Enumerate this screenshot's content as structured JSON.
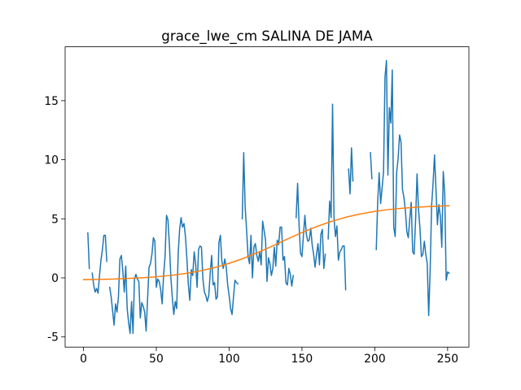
{
  "chart_data": {
    "type": "line",
    "title": "grace_lwe_cm SALINA DE JAMA",
    "xlim": [
      -12.6,
      264.6
    ],
    "xticks": [
      0,
      50,
      100,
      150,
      200,
      250
    ],
    "ylim": [
      -5.86,
      19.56
    ],
    "yticks": [
      -5,
      0,
      5,
      10,
      15
    ],
    "series": [
      {
        "color": "#1f77b4",
        "x": [
          0,
          1,
          2,
          3,
          4,
          5,
          6,
          7,
          8,
          9,
          10,
          11,
          12,
          13,
          14,
          15,
          16,
          17,
          18,
          19,
          20,
          21,
          22,
          23,
          24,
          25,
          26,
          27,
          28,
          29,
          30,
          31,
          32,
          33,
          34,
          35,
          36,
          37,
          38,
          39,
          40,
          41,
          42,
          43,
          44,
          45,
          46,
          47,
          48,
          49,
          50,
          51,
          52,
          53,
          54,
          55,
          56,
          57,
          58,
          59,
          60,
          61,
          62,
          63,
          64,
          65,
          66,
          67,
          68,
          69,
          70,
          71,
          72,
          73,
          74,
          75,
          76,
          77,
          78,
          79,
          80,
          81,
          82,
          83,
          84,
          85,
          86,
          87,
          88,
          89,
          90,
          91,
          92,
          93,
          94,
          95,
          96,
          97,
          98,
          99,
          100,
          101,
          102,
          103,
          104,
          105,
          106,
          107,
          108,
          109,
          110,
          111,
          112,
          113,
          114,
          115,
          116,
          117,
          118,
          119,
          120,
          121,
          122,
          123,
          124,
          125,
          126,
          127,
          128,
          129,
          130,
          131,
          132,
          133,
          134,
          135,
          136,
          137,
          138,
          139,
          140,
          141,
          142,
          143,
          144,
          145,
          146,
          147,
          148,
          149,
          150,
          151,
          152,
          153,
          154,
          155,
          156,
          157,
          158,
          159,
          160,
          161,
          162,
          163,
          164,
          165,
          166,
          167,
          168,
          169,
          170,
          171,
          172,
          173,
          174,
          175,
          176,
          177,
          178,
          179,
          180,
          181,
          182,
          183,
          184,
          185,
          186,
          187,
          188,
          189,
          190,
          191,
          192,
          193,
          194,
          195,
          196,
          197,
          198,
          199,
          200,
          201,
          202,
          203,
          204,
          205,
          206,
          207,
          208,
          209,
          210,
          211,
          212,
          213,
          214,
          215,
          216,
          217,
          218,
          219,
          220,
          221,
          222,
          223,
          224,
          225,
          226,
          227,
          228,
          229,
          230,
          231,
          232,
          233,
          234,
          235,
          236,
          237,
          238,
          239,
          240,
          241,
          242,
          243,
          244,
          245,
          246,
          247,
          248,
          249,
          250,
          251
        ],
        "values": [
          null,
          null,
          null,
          3.8,
          0.8,
          null,
          0.4,
          -0.6,
          -1.2,
          -0.9,
          -1.3,
          0.2,
          1.5,
          2.4,
          3.6,
          3.6,
          1.4,
          null,
          -0.8,
          -1.6,
          -2.8,
          -4.0,
          -2.2,
          -2.9,
          -1.6,
          1.6,
          1.9,
          0.6,
          -1.2,
          1.0,
          -2.6,
          -3.8,
          -4.7,
          -2.0,
          -4.7,
          -0.1,
          0.3,
          -0.1,
          -0.3,
          -3.4,
          -2.1,
          -2.4,
          -2.9,
          -4.5,
          -1.8,
          0.9,
          1.2,
          2.0,
          3.4,
          3.1,
          -0.8,
          -0.1,
          -0.3,
          -1.0,
          -2.2,
          0.2,
          1.8,
          5.3,
          4.9,
          2.8,
          0.0,
          -1.7,
          -3.1,
          -2.0,
          -2.6,
          2.0,
          4.1,
          5.1,
          4.3,
          4.6,
          3.5,
          1.6,
          -0.6,
          -1.9,
          0.7,
          0.2,
          2.2,
          1.2,
          -0.8,
          2.4,
          2.7,
          2.6,
          -0.1,
          -1.2,
          -1.5,
          -2.0,
          -1.5,
          0.4,
          1.9,
          -0.6,
          -0.4,
          -1.8,
          -1.6,
          3.0,
          3.6,
          1.4,
          0.8,
          1.6,
          0.9,
          -0.6,
          -1.5,
          -2.6,
          -3.1,
          -1.6,
          -0.2,
          -0.4,
          -0.5,
          null,
          null,
          5.0,
          10.6,
          6.0,
          4.0,
          1.8,
          1.2,
          3.6,
          0.0,
          2.6,
          2.9,
          1.9,
          1.4,
          2.2,
          1.1,
          4.8,
          4.0,
          3.2,
          -0.3,
          1.7,
          1.2,
          0.2,
          0.8,
          2.6,
          1.0,
          3.2,
          2.8,
          4.3,
          4.3,
          1.5,
          1.8,
          -0.4,
          -0.6,
          0.8,
          0.3,
          -0.7,
          0.2,
          null,
          5.1,
          8.0,
          4.5,
          2.1,
          1.8,
          3.6,
          5.3,
          3.7,
          3.1,
          3.2,
          4.2,
          2.8,
          2.0,
          0.9,
          2.0,
          2.9,
          1.1,
          3.7,
          4.1,
          0.8,
          2.0,
          null,
          3.3,
          6.5,
          5.1,
          14.7,
          5.1,
          3.5,
          4.4,
          1.5,
          2.2,
          2.4,
          2.7,
          2.7,
          -1.0,
          null,
          9.2,
          7.1,
          11.0,
          8.2,
          null,
          null,
          null,
          null,
          null,
          null,
          null,
          null,
          null,
          null,
          null,
          10.6,
          8.4,
          null,
          null,
          2.4,
          6.5,
          8.9,
          6.3,
          7.6,
          9.0,
          17.0,
          18.4,
          8.7,
          14.4,
          13.1,
          17.6,
          4.3,
          3.5,
          8.9,
          10.1,
          12.1,
          11.5,
          7.5,
          6.8,
          5.7,
          3.9,
          3.4,
          5.0,
          6.4,
          2.2,
          2.0,
          4.9,
          8.8,
          5.8,
          4.2,
          1.8,
          2.0,
          3.1,
          2.0,
          1.2,
          -3.2,
          0.6,
          6.1,
          8.0,
          10.4,
          7.5,
          4.5,
          6.2,
          5.2,
          2.6,
          9.0,
          7.2,
          -0.2,
          0.5,
          0.4
        ]
      },
      {
        "color": "#ff7f0e",
        "x": [
          0,
          10,
          20,
          30,
          40,
          50,
          60,
          70,
          80,
          90,
          100,
          110,
          120,
          130,
          140,
          150,
          160,
          170,
          180,
          190,
          200,
          210,
          220,
          230,
          240,
          250,
          251
        ],
        "values": [
          -0.15,
          -0.13,
          -0.1,
          -0.05,
          0.01,
          0.09,
          0.21,
          0.37,
          0.59,
          0.87,
          1.23,
          1.66,
          2.16,
          2.71,
          3.29,
          3.84,
          4.34,
          4.77,
          5.13,
          5.41,
          5.63,
          5.79,
          5.91,
          5.99,
          6.05,
          6.1,
          6.1
        ]
      }
    ]
  }
}
